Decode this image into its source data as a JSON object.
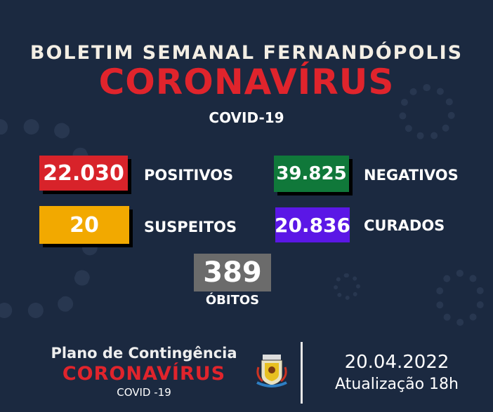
{
  "header": {
    "subtitle": "BOLETIM SEMANAL FERNANDÓPOLIS",
    "title": "CORONAVÍRUS",
    "tag": "COVID-19"
  },
  "stats": {
    "positivos": {
      "value": "22.030",
      "label": "POSITIVOS",
      "color": "#d8232a"
    },
    "negativos": {
      "value": "39.825",
      "label": "NEGATIVOS",
      "color": "#10783a"
    },
    "suspeitos": {
      "value": "20",
      "label": "SUSPEITOS",
      "color": "#f2a900"
    },
    "curados": {
      "value": "20.836",
      "label": "CURADOS",
      "color": "#5b17e6"
    },
    "obitos": {
      "value": "389",
      "label": "ÓBITOS",
      "color": "#6b6b6b"
    }
  },
  "footer": {
    "plan": "Plano de Contingência",
    "title": "CORONAVÍRUS",
    "tag": "COVID -19",
    "date": "20.04.2022",
    "update": "Atualização 18h"
  },
  "colors": {
    "background": "#1b2940",
    "accent_red": "#e0242c"
  }
}
